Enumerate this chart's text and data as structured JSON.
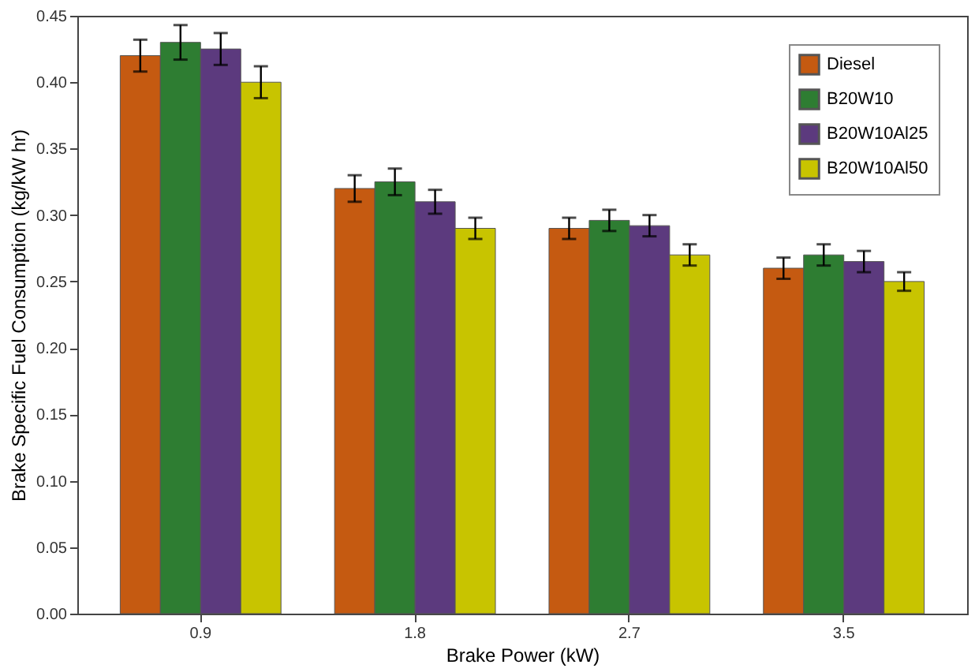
{
  "chart_data": {
    "type": "bar",
    "xlabel": "Brake Power (kW)",
    "ylabel": "Brake Specific Fuel Consumption (kg/kW hr)",
    "categories": [
      "0.9",
      "1.8",
      "2.7",
      "3.5"
    ],
    "series": [
      {
        "name": "Diesel",
        "color": "#c55a11",
        "values": [
          0.42,
          0.32,
          0.29,
          0.26
        ],
        "errors": [
          0.012,
          0.01,
          0.008,
          0.008
        ]
      },
      {
        "name": "B20W10",
        "color": "#2e7d32",
        "values": [
          0.43,
          0.325,
          0.296,
          0.27
        ],
        "errors": [
          0.013,
          0.01,
          0.008,
          0.008
        ]
      },
      {
        "name": "B20W10Al25",
        "color": "#5c3a7e",
        "values": [
          0.425,
          0.31,
          0.292,
          0.265
        ],
        "errors": [
          0.012,
          0.009,
          0.008,
          0.008
        ]
      },
      {
        "name": "B20W10Al50",
        "color": "#c8c400",
        "values": [
          0.4,
          0.29,
          0.27,
          0.25
        ],
        "errors": [
          0.012,
          0.008,
          0.008,
          0.007
        ]
      }
    ],
    "ylim": [
      0,
      0.45
    ],
    "yticks": [
      {
        "value": 0,
        "label": "0.00"
      },
      {
        "value": 0.05,
        "label": "0.05"
      },
      {
        "value": 0.1,
        "label": "0.10"
      },
      {
        "value": 0.15,
        "label": "0.15"
      },
      {
        "value": 0.2,
        "label": "0.20"
      },
      {
        "value": 0.25,
        "label": "0.25"
      },
      {
        "value": 0.3,
        "label": "0.30"
      },
      {
        "value": 0.35,
        "label": "0.35"
      },
      {
        "value": 0.4,
        "label": "0.40"
      },
      {
        "value": 0.45,
        "label": "0.45"
      }
    ],
    "grid": false,
    "legend": "top right"
  }
}
